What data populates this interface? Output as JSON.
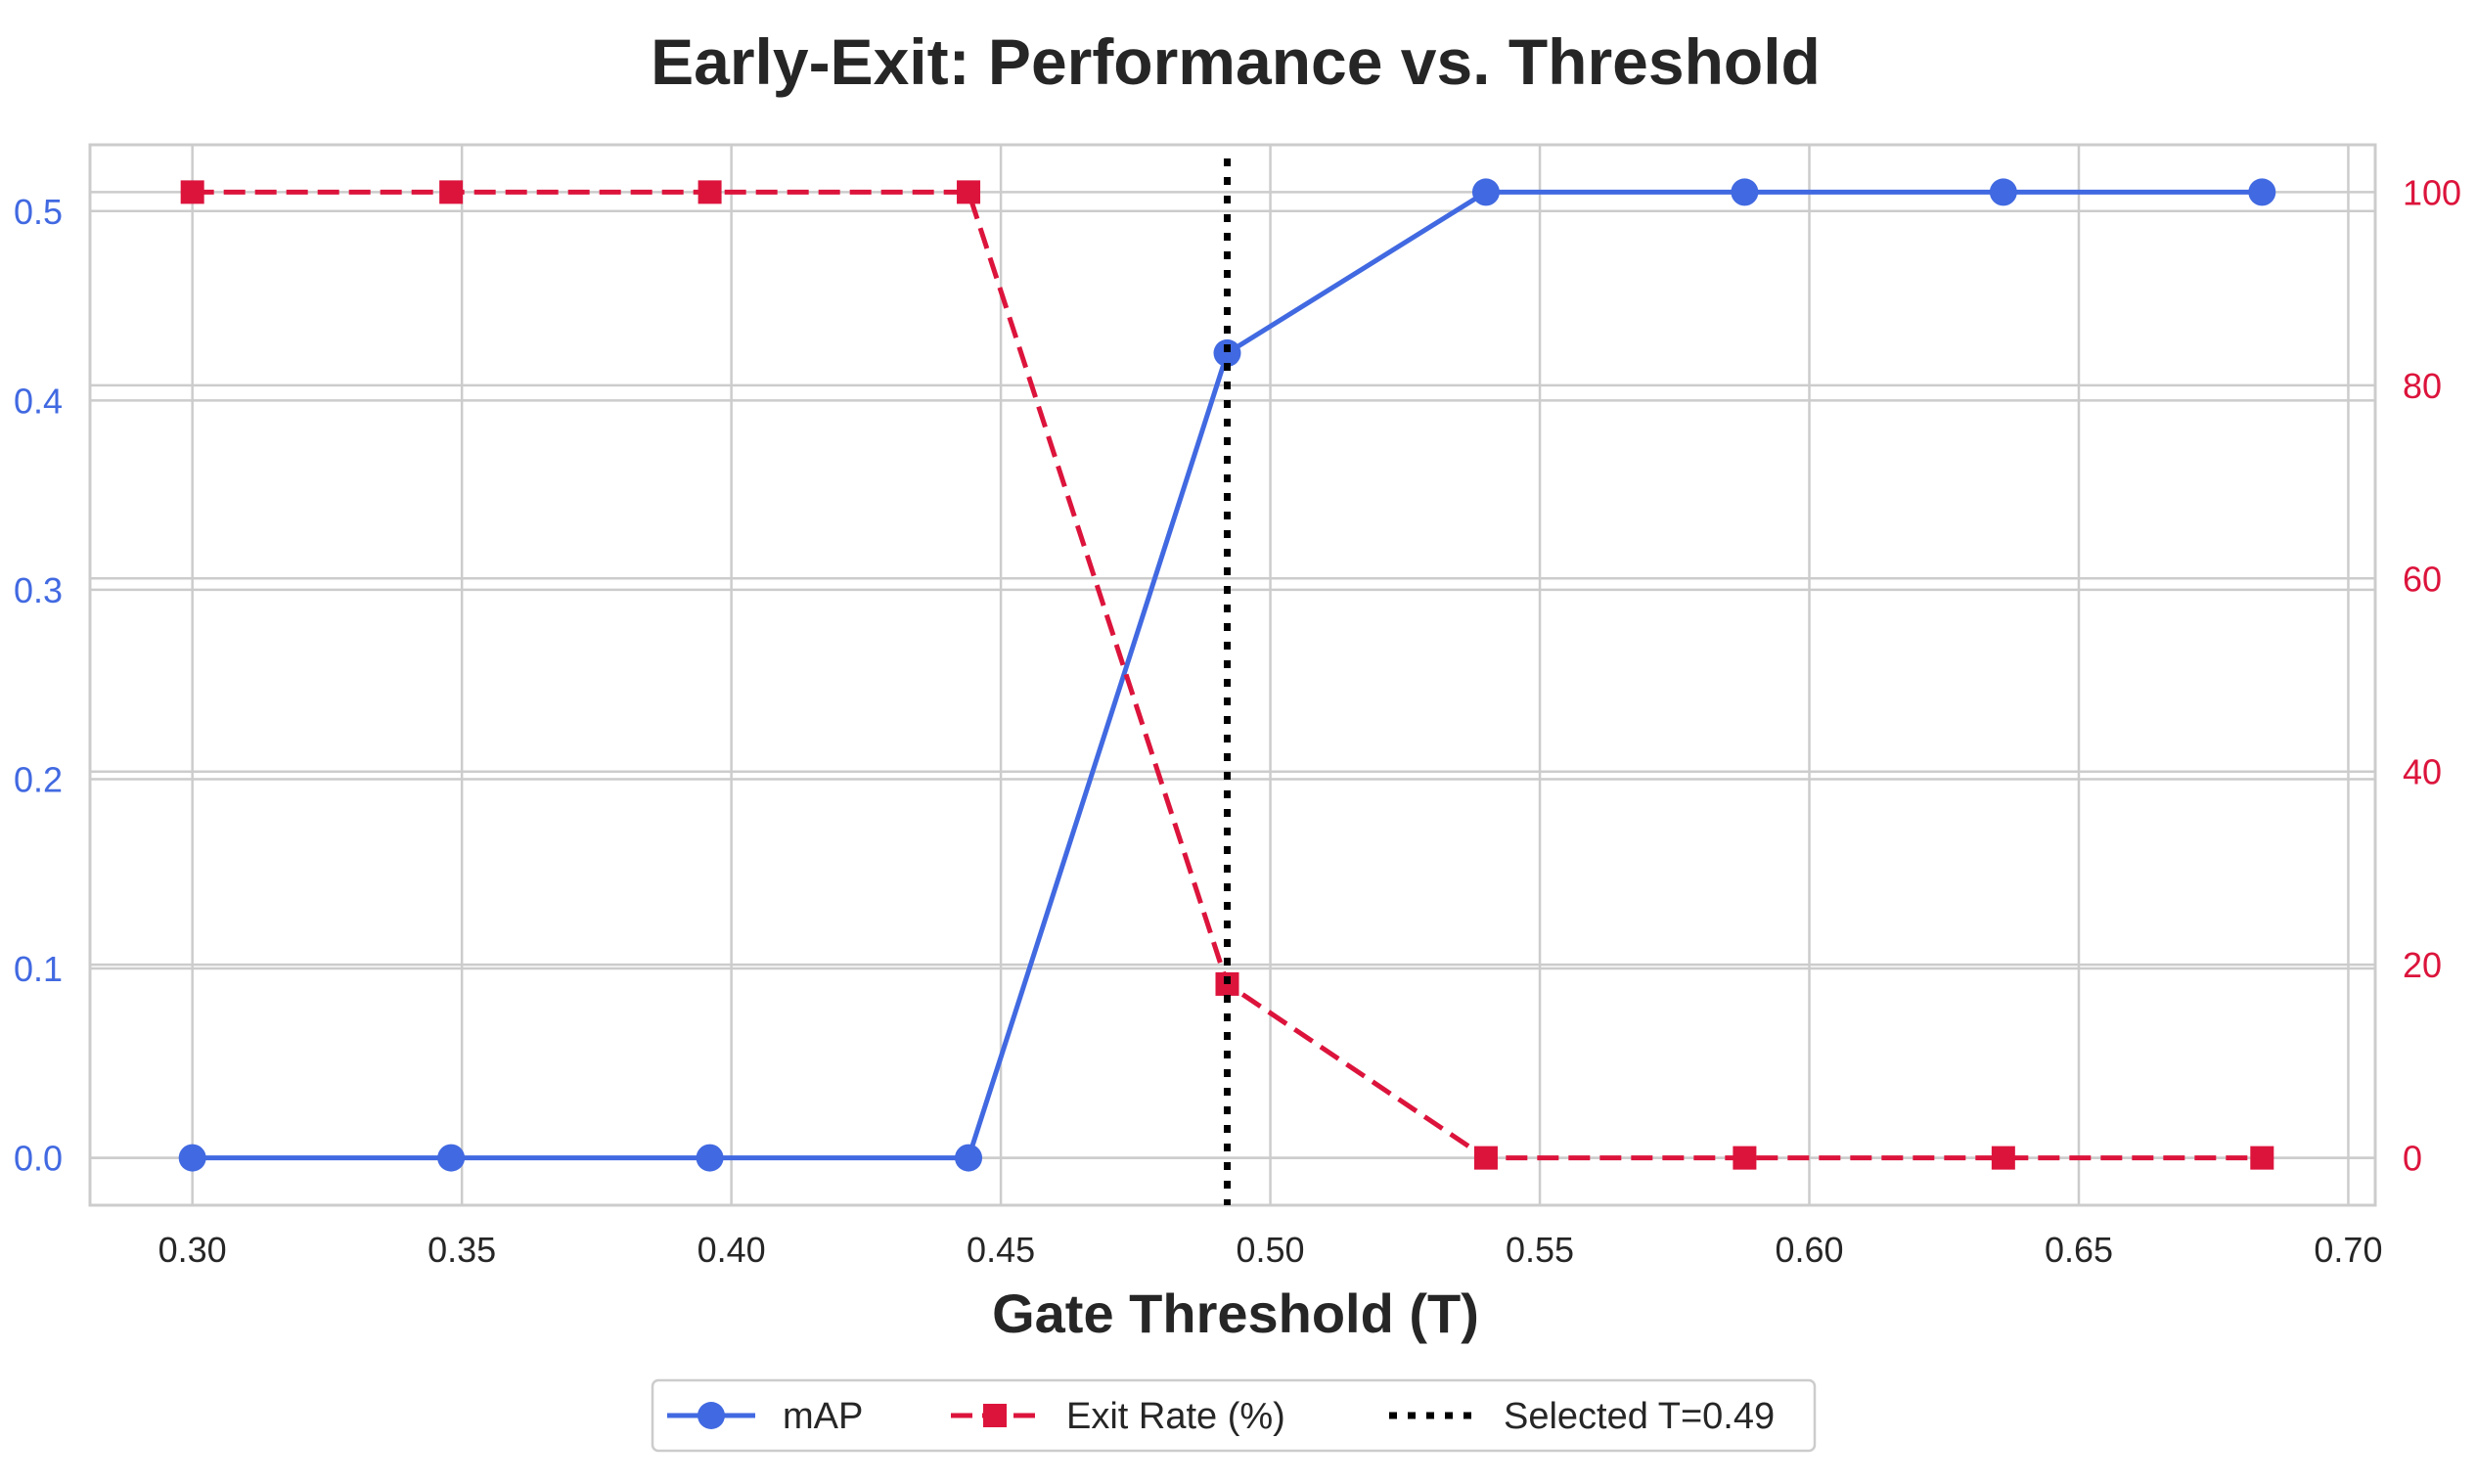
{
  "chart_data": {
    "type": "line",
    "title": "Early-Exit: Performance vs. Threshold",
    "xlabel": "Gate Threshold (T)",
    "ylabel_left": "",
    "ylabel_right": "",
    "xlim": [
      0.281,
      0.705
    ],
    "ylim_left": [
      -0.025,
      0.535
    ],
    "ylim_right": [
      -4.9,
      104.9
    ],
    "x_ticks": [
      "0.30",
      "0.35",
      "0.40",
      "0.45",
      "0.50",
      "0.55",
      "0.60",
      "0.65",
      "0.70"
    ],
    "y_left_ticks": [
      "0.0",
      "0.1",
      "0.2",
      "0.3",
      "0.4",
      "0.5"
    ],
    "y_right_ticks": [
      "0",
      "20",
      "40",
      "60",
      "80",
      "100"
    ],
    "grid": true,
    "x": [
      0.3,
      0.348,
      0.396,
      0.444,
      0.492,
      0.54,
      0.588,
      0.636,
      0.684
    ],
    "series": [
      {
        "name": "mAP",
        "axis": "left",
        "color": "#4169e1",
        "style": "solid",
        "marker": "circle",
        "values": [
          0.0,
          0.0,
          0.0,
          0.0,
          0.425,
          0.51,
          0.51,
          0.51,
          0.51
        ]
      },
      {
        "name": "Exit Rate (%)",
        "axis": "right",
        "color": "#dc143c",
        "style": "dashed",
        "marker": "square",
        "values": [
          100,
          100,
          100,
          100,
          18,
          0,
          0,
          0,
          0
        ]
      }
    ],
    "vline": {
      "name": "Selected T=0.49",
      "x": 0.492,
      "color": "#000000",
      "style": "dotted"
    },
    "legend": {
      "placement": "bottom-center",
      "entries": [
        "mAP",
        "Exit Rate (%)",
        "Selected T=0.49"
      ]
    },
    "colors": {
      "left_axis": "#4169e1",
      "right_axis": "#dc143c",
      "grid": "#cccccc",
      "text": "#262626"
    }
  }
}
